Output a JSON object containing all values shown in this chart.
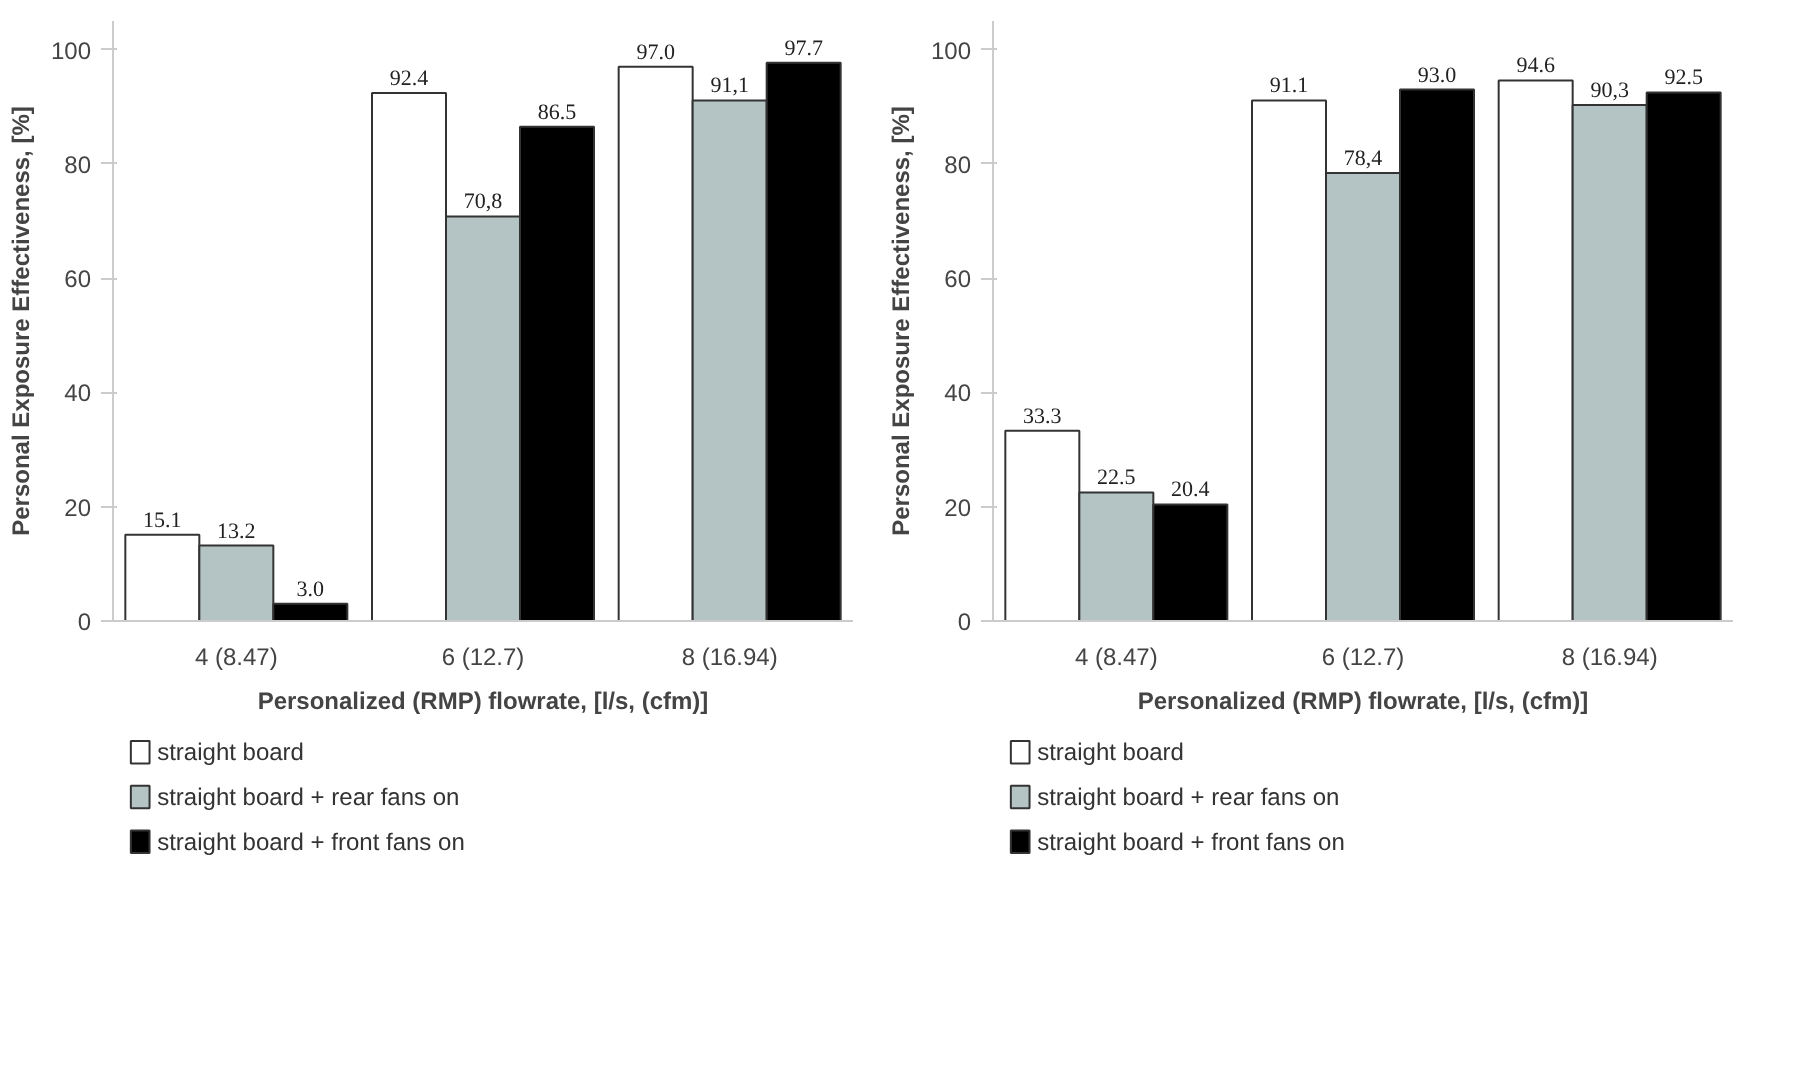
{
  "chart_data": [
    {
      "type": "bar",
      "categories": [
        "4 (8.47)",
        "6 (12.7)",
        "8 (16.94)"
      ],
      "xlabel": "Personalized (RMP) flowrate, [l/s, (cfm)]",
      "ylabel": "Personal Exposure Effectiveness, [%]",
      "ylim": [
        0,
        105
      ],
      "yticks": [
        0,
        20,
        40,
        60,
        80,
        100
      ],
      "grid": false,
      "legend": "bottom",
      "series": [
        {
          "name": "straight board",
          "color": "#ffffff",
          "values": [
            15.1,
            92.4,
            97.0
          ],
          "value_labels": [
            "15.1",
            "92.4",
            "97.0"
          ]
        },
        {
          "name": "straight board + rear fans on",
          "color": "#b4c4c4",
          "values": [
            13.2,
            70.8,
            91.1
          ],
          "value_labels": [
            "13.2",
            "70,8",
            "91,1"
          ]
        },
        {
          "name": "straight board + front fans on",
          "color": "#000000",
          "values": [
            3.0,
            86.5,
            97.7
          ],
          "value_labels": [
            "3.0",
            "86.5",
            "97.7"
          ]
        }
      ]
    },
    {
      "type": "bar",
      "categories": [
        "4 (8.47)",
        "6 (12.7)",
        "8 (16.94)"
      ],
      "xlabel": "Personalized (RMP) flowrate, [l/s, (cfm)]",
      "ylabel": "Personal Exposure Effectiveness, [%]",
      "ylim": [
        0,
        105
      ],
      "yticks": [
        0,
        20,
        40,
        60,
        80,
        100
      ],
      "grid": false,
      "legend": "bottom",
      "series": [
        {
          "name": "straight board",
          "color": "#ffffff",
          "values": [
            33.3,
            91.1,
            94.6
          ],
          "value_labels": [
            "33.3",
            "91.1",
            "94.6"
          ]
        },
        {
          "name": "straight board + rear fans on",
          "color": "#b4c4c4",
          "values": [
            22.5,
            78.4,
            90.3
          ],
          "value_labels": [
            "22.5",
            "78,4",
            "90,3"
          ]
        },
        {
          "name": "straight board + front fans on",
          "color": "#000000",
          "values": [
            20.4,
            93.0,
            92.5
          ],
          "value_labels": [
            "20.4",
            "93.0",
            "92.5"
          ]
        }
      ]
    }
  ]
}
